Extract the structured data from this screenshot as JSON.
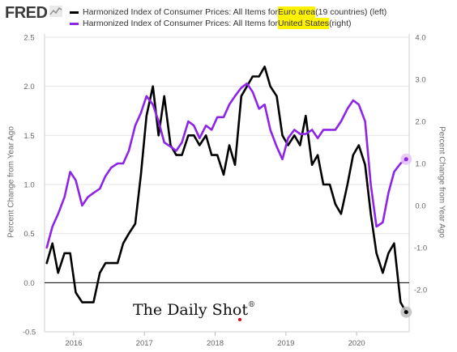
{
  "brand": {
    "logo_text": "FRED",
    "logo_icon": "line-chart-icon"
  },
  "legend": {
    "items": [
      {
        "prefix": "Harmonized Index of Consumer Prices: All Items for ",
        "highlight": "Euro area",
        "suffix": " (19 countries) (left)",
        "color": "#000000"
      },
      {
        "prefix": "Harmonized Index of Consumer Prices: All Items for ",
        "highlight": "United States",
        "suffix": " (right)",
        "color": "#8e24e8"
      }
    ]
  },
  "watermark": {
    "text": "The Daily Shot",
    "mark": "®"
  },
  "chart_data": {
    "type": "line",
    "ylabel_left": "Percent Change from Year Ago",
    "ylabel_right": "Percent Change from Year Ago",
    "ylim_left": [
      -0.5,
      2.5
    ],
    "ylim_right": [
      -3.0,
      4.0
    ],
    "yticks_left": [
      "2.5",
      "2.0",
      "1.5",
      "1.0",
      "0.5",
      "0.0",
      "-0.5"
    ],
    "yticks_right": [
      "4.0",
      "3.0",
      "2.0",
      "1.0",
      "0.0",
      "-1.0",
      "-2.0"
    ],
    "xticks": [
      "2016",
      "2017",
      "2018",
      "2019",
      "2020"
    ],
    "xlim": [
      2015.6,
      2020.72
    ],
    "grid": "horizontal",
    "series": [
      {
        "name": "Harmonized Index of Consumer Prices: All Items for Euro area (19 countries) (left)",
        "axis": "left",
        "color": "#000000",
        "x": [
          2015.62,
          2015.7,
          2015.78,
          2015.87,
          2015.95,
          2016.03,
          2016.12,
          2016.2,
          2016.28,
          2016.37,
          2016.45,
          2016.53,
          2016.62,
          2016.7,
          2016.78,
          2016.87,
          2016.95,
          2017.03,
          2017.12,
          2017.2,
          2017.28,
          2017.37,
          2017.45,
          2017.53,
          2017.62,
          2017.7,
          2017.78,
          2017.87,
          2017.95,
          2018.03,
          2018.12,
          2018.2,
          2018.28,
          2018.37,
          2018.45,
          2018.53,
          2018.62,
          2018.7,
          2018.78,
          2018.87,
          2018.95,
          2019.03,
          2019.12,
          2019.2,
          2019.28,
          2019.37,
          2019.45,
          2019.53,
          2019.62,
          2019.7,
          2019.78,
          2019.87,
          2019.95,
          2020.03,
          2020.12,
          2020.2,
          2020.28,
          2020.37,
          2020.45,
          2020.53,
          2020.62,
          2020.7
        ],
        "values": [
          0.2,
          0.4,
          0.1,
          0.3,
          0.3,
          -0.1,
          -0.2,
          -0.2,
          -0.2,
          0.1,
          0.2,
          0.2,
          0.2,
          0.4,
          0.5,
          0.6,
          1.1,
          1.7,
          2.0,
          1.5,
          1.9,
          1.4,
          1.3,
          1.3,
          1.5,
          1.5,
          1.4,
          1.5,
          1.3,
          1.3,
          1.1,
          1.4,
          1.2,
          1.9,
          2.0,
          2.1,
          2.1,
          2.2,
          2.0,
          1.9,
          1.5,
          1.4,
          1.5,
          1.4,
          1.7,
          1.2,
          1.3,
          1.0,
          1.0,
          0.8,
          0.7,
          1.0,
          1.3,
          1.4,
          1.2,
          0.7,
          0.3,
          0.1,
          0.3,
          0.4,
          -0.2,
          -0.3
        ]
      },
      {
        "name": "Harmonized Index of Consumer Prices: All Items for United States (right)",
        "axis": "right",
        "color": "#8e24e8",
        "x": [
          2015.62,
          2015.7,
          2015.78,
          2015.87,
          2015.95,
          2016.03,
          2016.12,
          2016.2,
          2016.28,
          2016.37,
          2016.45,
          2016.53,
          2016.62,
          2016.7,
          2016.78,
          2016.87,
          2016.95,
          2017.03,
          2017.12,
          2017.2,
          2017.28,
          2017.37,
          2017.45,
          2017.53,
          2017.62,
          2017.7,
          2017.78,
          2017.87,
          2017.95,
          2018.03,
          2018.12,
          2018.2,
          2018.28,
          2018.37,
          2018.45,
          2018.53,
          2018.62,
          2018.7,
          2018.78,
          2018.87,
          2018.95,
          2019.03,
          2019.12,
          2019.2,
          2019.28,
          2019.37,
          2019.45,
          2019.53,
          2019.62,
          2019.7,
          2019.78,
          2019.87,
          2019.95,
          2020.03,
          2020.12,
          2020.2,
          2020.28,
          2020.37,
          2020.45,
          2020.53,
          2020.62,
          2020.7
        ],
        "values": [
          -1.0,
          -0.5,
          -0.2,
          0.2,
          0.8,
          0.6,
          0.0,
          0.2,
          0.3,
          0.4,
          0.7,
          0.9,
          1.0,
          1.0,
          1.3,
          1.9,
          2.2,
          2.6,
          2.4,
          2.0,
          1.5,
          1.4,
          1.3,
          1.5,
          2.0,
          1.9,
          1.6,
          1.9,
          1.8,
          2.1,
          2.1,
          2.4,
          2.6,
          2.8,
          2.9,
          2.7,
          2.3,
          2.4,
          1.8,
          1.4,
          1.1,
          1.6,
          1.8,
          1.7,
          1.7,
          1.8,
          1.6,
          1.8,
          1.8,
          1.8,
          2.0,
          2.3,
          2.5,
          2.4,
          2.0,
          0.5,
          -0.5,
          -0.4,
          0.3,
          0.8,
          1.0,
          1.1
        ]
      }
    ]
  }
}
